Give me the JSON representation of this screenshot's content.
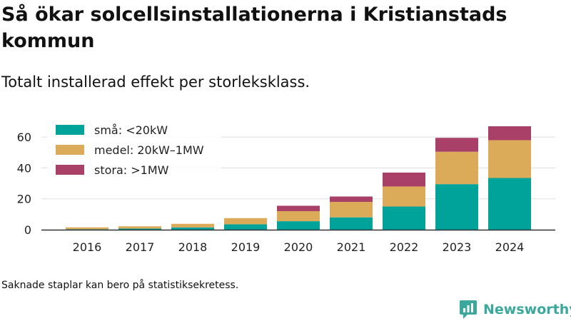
{
  "title": "Så ökar solcellsinstallationerna i Kristianstads kommun",
  "subtitle": "Totalt installerad effekt per storleksklass.",
  "footnote": "Saknade staplar kan bero på statistiksekretess.",
  "brand": "Newsworthy",
  "icons": {
    "brand_logo": "newsworthy-logo-icon"
  },
  "chart_data": {
    "type": "bar",
    "stacked": true,
    "categories": [
      "2016",
      "2017",
      "2018",
      "2019",
      "2020",
      "2021",
      "2022",
      "2023",
      "2024"
    ],
    "series": [
      {
        "name": "små: <20kW",
        "color": "#00a39a",
        "values": [
          0.3,
          0.7,
          1.5,
          3.5,
          5.5,
          8.0,
          15.0,
          29.5,
          33.5
        ]
      },
      {
        "name": "medel: 20kW–1MW",
        "color": "#dbab5a",
        "values": [
          1.2,
          1.5,
          2.3,
          4.0,
          6.5,
          10.0,
          13.0,
          21.0,
          24.5
        ]
      },
      {
        "name": "stora: >1MW",
        "color": "#a84068",
        "values": [
          0,
          0,
          0,
          0,
          3.5,
          3.5,
          9.0,
          9.0,
          9.0
        ]
      }
    ],
    "y_ticks": [
      0,
      20,
      40,
      60
    ],
    "ylim": [
      0,
      67
    ],
    "grid": true,
    "legend_position": "top-left"
  }
}
